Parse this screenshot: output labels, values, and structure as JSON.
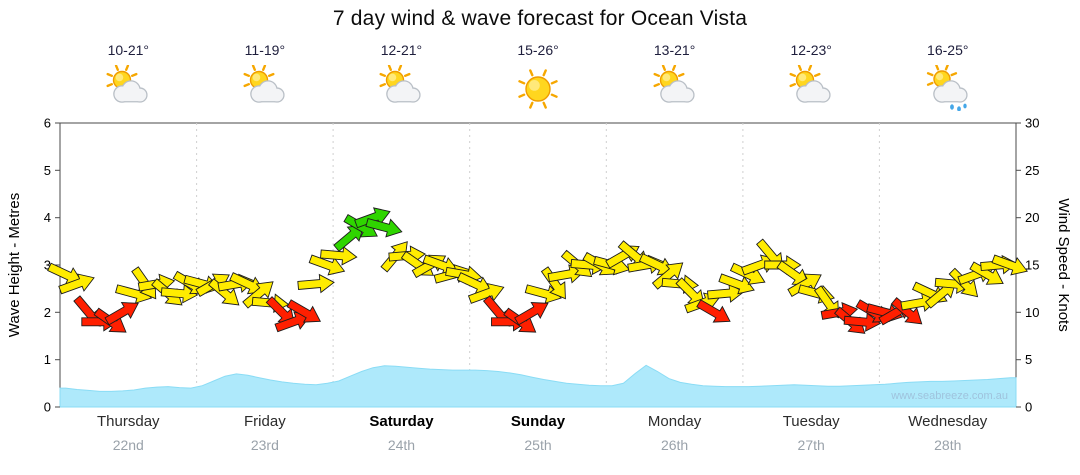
{
  "title": "7 day wind & wave forecast for Ocean Vista",
  "watermark": "www.seabreeze.com.au",
  "axes": {
    "left_label": "Wave Height - Metres",
    "right_label": "Wind Speed - Knots",
    "left_ticks": [
      0,
      1,
      2,
      3,
      4,
      5,
      6
    ],
    "right_ticks": [
      0,
      5,
      10,
      15,
      20,
      25,
      30
    ]
  },
  "days": [
    {
      "name": "Thursday",
      "date": "22nd",
      "temp": "10-21°",
      "icon": "sun-cloud",
      "bold": false
    },
    {
      "name": "Friday",
      "date": "23rd",
      "temp": "11-19°",
      "icon": "sun-cloud",
      "bold": false
    },
    {
      "name": "Saturday",
      "date": "24th",
      "temp": "12-21°",
      "icon": "sun-cloud",
      "bold": true
    },
    {
      "name": "Sunday",
      "date": "25th",
      "temp": "15-26°",
      "icon": "sun",
      "bold": true
    },
    {
      "name": "Monday",
      "date": "26th",
      "temp": "13-21°",
      "icon": "sun-cloud",
      "bold": false
    },
    {
      "name": "Tuesday",
      "date": "27th",
      "temp": "12-23°",
      "icon": "sun-cloud",
      "bold": false
    },
    {
      "name": "Wednesday",
      "date": "28th",
      "temp": "16-25°",
      "icon": "sun-cloud-rain",
      "bold": false
    }
  ],
  "chart_data": {
    "type": "area+wind-arrows",
    "x_unit": "2-hour samples across 7 days (12 per day)",
    "wave_ylim": [
      0,
      6
    ],
    "wind_ylim": [
      0,
      30
    ],
    "thresholds_kn": {
      "light_max": 10,
      "moderate_max": 16
    },
    "colors": {
      "wave_fill": "#aee9fb",
      "wave_edge": "#8adcf5",
      "wind_light": "#ff1f00",
      "wind_moderate": "#ffec00",
      "wind_fresh": "#2fd500",
      "watermark": "#9fc3dd"
    },
    "wind_speed_kn": [
      14,
      13,
      10,
      9,
      9,
      10,
      12,
      13,
      13,
      12,
      12,
      13,
      13,
      13,
      12,
      13,
      13,
      12,
      11,
      10,
      9,
      10,
      13,
      15,
      16,
      18,
      19,
      20,
      19,
      16,
      16,
      15,
      15,
      15,
      14,
      14,
      13,
      12,
      10,
      9,
      9,
      10,
      12,
      13,
      14,
      15,
      15,
      15,
      15,
      16,
      16,
      15,
      15,
      14,
      13,
      12,
      11,
      10,
      12,
      13,
      14,
      15,
      16,
      15,
      14,
      13,
      12,
      11,
      10,
      9,
      9,
      10,
      10,
      10,
      10,
      11,
      12,
      12,
      13,
      13,
      14,
      14,
      15,
      15
    ],
    "arrow_rot_deg": [
      25,
      -20,
      50,
      0,
      35,
      -30,
      15,
      55,
      -10,
      40,
      5,
      30,
      15,
      -30,
      40,
      -10,
      25,
      -40,
      5,
      45,
      -20,
      30,
      -5,
      20,
      5,
      -40,
      30,
      -20,
      15,
      -50,
      -5,
      35,
      -30,
      20,
      -15,
      10,
      25,
      -20,
      50,
      0,
      35,
      -30,
      15,
      55,
      -10,
      40,
      5,
      30,
      15,
      -30,
      40,
      -10,
      25,
      -40,
      5,
      45,
      -20,
      30,
      -5,
      20,
      25,
      -20,
      50,
      0,
      35,
      -30,
      15,
      55,
      -10,
      40,
      5,
      30,
      15,
      -30,
      40,
      -10,
      25,
      -40,
      5,
      45,
      -20,
      30,
      -5,
      20
    ],
    "wave_height_m": [
      0.4,
      0.37,
      0.35,
      0.33,
      0.33,
      0.34,
      0.36,
      0.4,
      0.42,
      0.43,
      0.41,
      0.4,
      0.45,
      0.55,
      0.65,
      0.7,
      0.67,
      0.62,
      0.57,
      0.53,
      0.5,
      0.48,
      0.47,
      0.5,
      0.55,
      0.65,
      0.75,
      0.83,
      0.87,
      0.86,
      0.84,
      0.82,
      0.8,
      0.79,
      0.78,
      0.78,
      0.78,
      0.77,
      0.75,
      0.72,
      0.68,
      0.63,
      0.58,
      0.54,
      0.5,
      0.48,
      0.46,
      0.45,
      0.45,
      0.5,
      0.7,
      0.88,
      0.75,
      0.6,
      0.52,
      0.48,
      0.45,
      0.44,
      0.43,
      0.43,
      0.43,
      0.44,
      0.45,
      0.46,
      0.47,
      0.46,
      0.45,
      0.44,
      0.44,
      0.45,
      0.46,
      0.47,
      0.48,
      0.5,
      0.52,
      0.53,
      0.54,
      0.54,
      0.55,
      0.56,
      0.57,
      0.58,
      0.6,
      0.62
    ]
  }
}
